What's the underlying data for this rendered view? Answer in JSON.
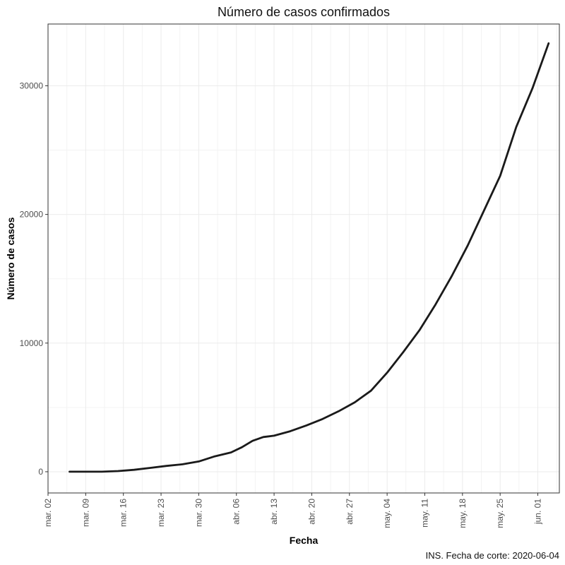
{
  "chart_data": {
    "type": "line",
    "title": "Número de casos confirmados",
    "xlabel": "Fecha",
    "ylabel": "Número de casos",
    "caption": "INS. Fecha de corte: 2020-06-04",
    "x_ticks": [
      "mar. 02",
      "mar. 09",
      "mar. 16",
      "mar. 23",
      "mar. 30",
      "abr. 06",
      "abr. 13",
      "abr. 20",
      "abr. 27",
      "may. 04",
      "may. 11",
      "may. 18",
      "may. 25",
      "jun. 01"
    ],
    "y_ticks": [
      "0",
      "10000",
      "20000",
      "30000"
    ],
    "xlim": [
      "2020-03-02",
      "2020-06-05"
    ],
    "ylim": [
      -1650,
      34800
    ],
    "grid": true,
    "line_color": "#1a1a1a",
    "x": [
      "2020-03-06",
      "2020-03-09",
      "2020-03-12",
      "2020-03-15",
      "2020-03-18",
      "2020-03-21",
      "2020-03-24",
      "2020-03-27",
      "2020-03-30",
      "2020-04-02",
      "2020-04-05",
      "2020-04-07",
      "2020-04-09",
      "2020-04-11",
      "2020-04-13",
      "2020-04-16",
      "2020-04-19",
      "2020-04-22",
      "2020-04-25",
      "2020-04-28",
      "2020-05-01",
      "2020-05-04",
      "2020-05-07",
      "2020-05-10",
      "2020-05-13",
      "2020-05-16",
      "2020-05-19",
      "2020-05-22",
      "2020-05-25",
      "2020-05-28",
      "2020-05-31",
      "2020-06-03"
    ],
    "series": [
      {
        "values": [
          0,
          0,
          0,
          50,
          150,
          300,
          450,
          580,
          800,
          1200,
          1500,
          1900,
          2400,
          2700,
          2800,
          3150,
          3600,
          4100,
          4700,
          5400,
          6300,
          7700,
          9300,
          11000,
          13000,
          15200,
          17600,
          20300,
          23000,
          26800,
          29800,
          33300
        ]
      }
    ]
  }
}
